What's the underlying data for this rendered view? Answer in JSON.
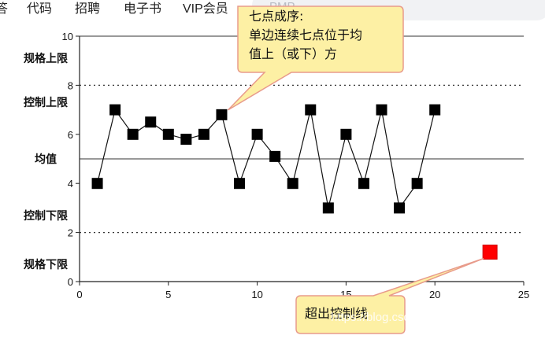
{
  "nav": {
    "items": [
      "答",
      "代码",
      "招聘",
      "电子书",
      "VIP会员"
    ],
    "search_placeholder": "PMP"
  },
  "watermark": "https://blog.csdn.net/Michael_HM",
  "colors": {
    "marker": "#000000",
    "outlier": "#ff0000",
    "callout_fill": "#fdf0a4",
    "callout_stroke": "#e89b8b"
  },
  "chart_data": {
    "type": "line",
    "x": [
      1,
      2,
      3,
      4,
      5,
      6,
      7,
      8,
      9,
      10,
      11,
      12,
      13,
      14,
      15,
      16,
      17,
      18,
      19,
      20
    ],
    "series": [
      {
        "values": [
          4,
          7,
          6,
          6.5,
          6,
          5.8,
          6,
          6.8,
          4,
          6,
          5.1,
          4,
          7,
          3,
          6,
          4,
          7,
          3,
          4,
          7
        ]
      }
    ],
    "outlier": {
      "x": 23.1,
      "y": 1.2
    },
    "xlim": [
      0,
      25
    ],
    "ylim": [
      0,
      10
    ],
    "x_ticks": [
      "0",
      "5",
      "10",
      "15",
      "20",
      "25"
    ],
    "y_ticks": [
      "0",
      "2",
      "4",
      "6",
      "8",
      "10"
    ],
    "y_tick_values": [
      0,
      2,
      4,
      6,
      8,
      10
    ],
    "x_tick_values": [
      0,
      5,
      10,
      15,
      20,
      25
    ],
    "reference_lines": [
      {
        "label": "规格上限",
        "y": 10,
        "style": "solid"
      },
      {
        "label": "控制上限",
        "y": 8,
        "style": "dotted"
      },
      {
        "label": "均值",
        "y": 5,
        "style": "solid"
      },
      {
        "label": "控制下限",
        "y": 2,
        "style": "dotted"
      },
      {
        "label": "规格下限",
        "y": 0,
        "style": "solid"
      }
    ],
    "y_side_labels": [
      {
        "text": "规格上限",
        "y": 9.1
      },
      {
        "text": "控制上限",
        "y": 7.3
      },
      {
        "text": "均值",
        "y": 5
      },
      {
        "text": "控制下限",
        "y": 2.7
      },
      {
        "text": "规格下限",
        "y": 0.7
      }
    ],
    "annotations": [
      {
        "lines": [
          "七点成序:",
          "单边连续七点位于均",
          "值上（或下）方"
        ]
      },
      {
        "lines": [
          "超出控制线"
        ]
      }
    ]
  }
}
